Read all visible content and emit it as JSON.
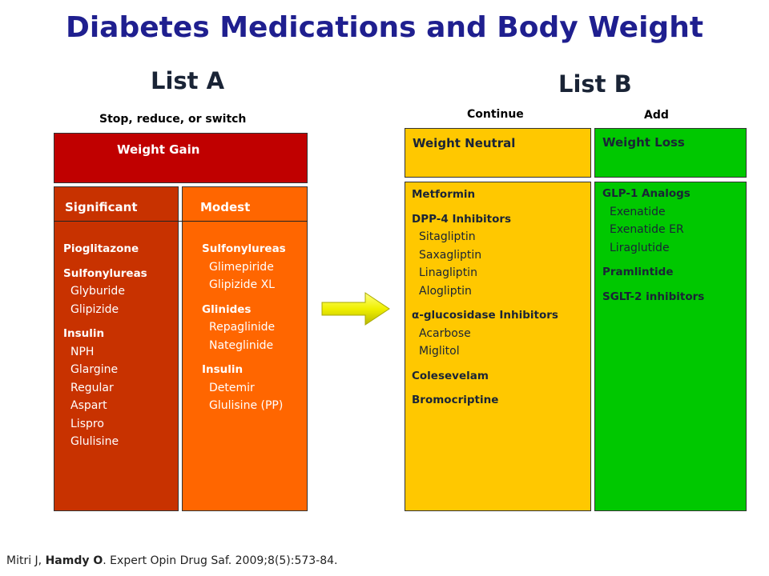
{
  "title": "Diabetes Medications and Body Weight",
  "list_a": {
    "heading": "List A",
    "subheading": "Stop, reduce, or switch",
    "category": "Weight Gain",
    "significant": {
      "header": "Significant",
      "items": [
        {
          "text": "Pioglitazone",
          "bold": true
        },
        {
          "text": "",
          "spacer": true
        },
        {
          "text": "Sulfonylureas",
          "bold": true
        },
        {
          "text": "Glyburide",
          "indent": true
        },
        {
          "text": "Glipizide",
          "indent": true
        },
        {
          "text": "",
          "spacer": true
        },
        {
          "text": "Insulin",
          "bold": true
        },
        {
          "text": "NPH",
          "indent": true
        },
        {
          "text": "Glargine",
          "indent": true
        },
        {
          "text": "Regular",
          "indent": true
        },
        {
          "text": "Aspart",
          "indent": true
        },
        {
          "text": "Lispro",
          "indent": true
        },
        {
          "text": "Glulisine",
          "indent": true
        }
      ]
    },
    "modest": {
      "header": "Modest",
      "items": [
        {
          "text": "Sulfonylureas",
          "bold": true
        },
        {
          "text": "Glimepiride",
          "indent": true
        },
        {
          "text": "Glipizide XL",
          "indent": true
        },
        {
          "text": "",
          "spacer": true
        },
        {
          "text": "Glinides",
          "bold": true
        },
        {
          "text": "Repaglinide",
          "indent": true
        },
        {
          "text": "Nateglinide",
          "indent": true
        },
        {
          "text": "",
          "spacer": true
        },
        {
          "text": "Insulin",
          "bold": true
        },
        {
          "text": "Detemir",
          "indent": true
        },
        {
          "text": "Glulisine (PP)",
          "indent": true
        }
      ]
    }
  },
  "list_b": {
    "heading": "List B",
    "continue_label": "Continue",
    "add_label": "Add",
    "neutral": {
      "header": "Weight Neutral",
      "items": [
        {
          "text": "Metformin",
          "bold": true
        },
        {
          "text": "",
          "spacer": true
        },
        {
          "text": "DPP-4 Inhibitors",
          "bold": true
        },
        {
          "text": "Sitagliptin",
          "indent": true
        },
        {
          "text": "Saxagliptin",
          "indent": true
        },
        {
          "text": "Linagliptin",
          "indent": true
        },
        {
          "text": "Alogliptin",
          "indent": true
        },
        {
          "text": "",
          "spacer": true
        },
        {
          "text": "α-glucosidase Inhibitors",
          "bold": true
        },
        {
          "text": "Acarbose",
          "indent": true
        },
        {
          "text": "Miglitol",
          "indent": true
        },
        {
          "text": "",
          "spacer": true
        },
        {
          "text": "Colesevelam",
          "bold": true
        },
        {
          "text": "",
          "spacer": true
        },
        {
          "text": "Bromocriptine",
          "bold": true
        }
      ]
    },
    "loss": {
      "header": "Weight Loss",
      "items": [
        {
          "text": "GLP-1 Analogs",
          "bold": true
        },
        {
          "text": "Exenatide",
          "indent": true
        },
        {
          "text": "Exenatide ER",
          "indent": true
        },
        {
          "text": "Liraglutide",
          "indent": true
        },
        {
          "text": "",
          "spacer": true
        },
        {
          "text": "Pramlintide",
          "bold": true
        },
        {
          "text": "",
          "spacer": true
        },
        {
          "text": "SGLT-2 inhibitors",
          "bold": true
        }
      ]
    }
  },
  "arrow_icon": "right-arrow-icon",
  "citation": {
    "prefix": "Mitri J, ",
    "bold_author": "Hamdy O",
    "suffix": ". Expert Opin Drug Saf. 2009;8(5):573-84."
  },
  "colors": {
    "title": "#1f1f8f",
    "weight_gain": "#c00000",
    "significant": "#c83200",
    "modest": "#ff6600",
    "neutral": "#ffc800",
    "loss": "#00c800",
    "arrow": "#f0f000"
  }
}
